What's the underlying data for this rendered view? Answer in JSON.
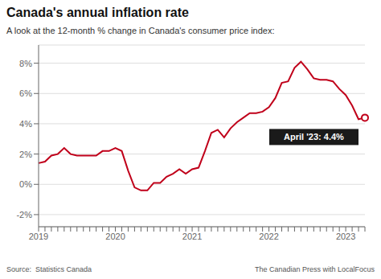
{
  "chart_data": {
    "type": "line",
    "title": "Canada's annual inflation rate",
    "subtitle": "A look at the 12-month % change in Canada's consumer price index:",
    "annotation": "April '23: 4.4%",
    "source_left": "Source:  Statistics Canada",
    "source_right": "The Canadian Press with LocalFocus",
    "categories": [
      "2019",
      null,
      null,
      null,
      null,
      null,
      null,
      null,
      null,
      null,
      null,
      null,
      "2020",
      null,
      null,
      null,
      null,
      null,
      null,
      null,
      null,
      null,
      null,
      null,
      "2021",
      null,
      null,
      null,
      null,
      null,
      null,
      null,
      null,
      null,
      null,
      null,
      "2022",
      null,
      null,
      null,
      null,
      null,
      null,
      null,
      null,
      null,
      null,
      null,
      "2023",
      null,
      null,
      null
    ],
    "values": [
      1.4,
      1.5,
      1.9,
      2.0,
      2.4,
      2.0,
      1.9,
      1.9,
      1.9,
      1.9,
      2.2,
      2.2,
      2.4,
      2.2,
      0.9,
      -0.2,
      -0.4,
      -0.4,
      0.1,
      0.1,
      0.5,
      0.7,
      1.0,
      0.7,
      1.0,
      1.1,
      2.2,
      3.4,
      3.6,
      3.1,
      3.7,
      4.1,
      4.4,
      4.7,
      4.7,
      4.8,
      5.1,
      5.7,
      6.7,
      6.8,
      7.7,
      8.1,
      7.6,
      7.0,
      6.9,
      6.9,
      6.8,
      6.3,
      5.9,
      5.2,
      4.3,
      4.4
    ],
    "color": "#c0001a",
    "ylim": [
      -2.8,
      9.2
    ],
    "yticks": [
      {
        "value": -2,
        "label": "-2%"
      },
      {
        "value": 0,
        "label": "0%"
      },
      {
        "value": 2,
        "label": "2%"
      },
      {
        "value": 4,
        "label": "4%"
      },
      {
        "value": 6,
        "label": "6%"
      },
      {
        "value": 8,
        "label": "8%"
      }
    ],
    "grid": true
  }
}
